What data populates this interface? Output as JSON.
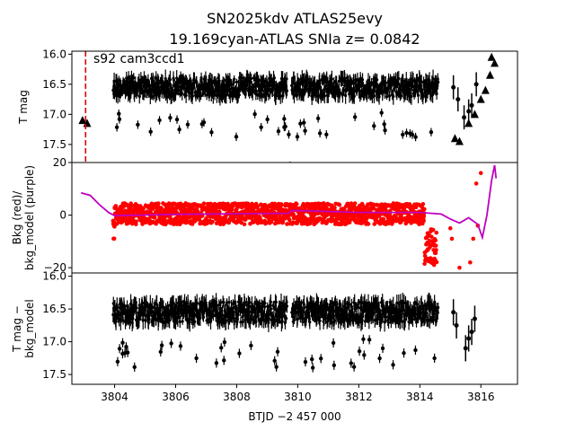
{
  "chart_data": {
    "type": "scatter",
    "title": "SN2025kdv  ATLAS25evy",
    "subtitle": "19.169cyan-ATLAS SNIa z= 0.0842",
    "xlabel": "BTJD −2 457 000",
    "x_ticks": [
      "3804",
      "3806",
      "3808",
      "3810",
      "3812",
      "3814",
      "3816"
    ],
    "xlim": [
      3802.6,
      3817.2
    ],
    "panels": [
      {
        "ylabel": "T mag",
        "ylim_inverted": [
          17.8,
          15.95
        ],
        "y_ticks": [
          "16.0",
          "16.5",
          "17.0",
          "17.5"
        ],
        "annotation": "s92 cam3ccd1",
        "marker_line_x": 3803.05,
        "series": [
          {
            "kind": "lightcurve",
            "x_start": 3803.95,
            "x_end": 3814.6,
            "gap": [
              3809.65,
              3809.8
            ],
            "center": 16.55,
            "spread": 0.32
          },
          {
            "kind": "triangles",
            "points": [
              [
                3802.95,
                17.1
              ],
              [
                3803.1,
                17.15
              ],
              [
                3809.75,
                17.85
              ],
              [
                3815.15,
                17.4
              ],
              [
                3815.3,
                17.45
              ],
              [
                3815.6,
                17.15
              ],
              [
                3815.8,
                17.0
              ],
              [
                3816.0,
                16.75
              ],
              [
                3816.15,
                16.6
              ],
              [
                3816.3,
                16.35
              ],
              [
                3816.35,
                16.05
              ],
              [
                3816.45,
                16.15
              ]
            ]
          },
          {
            "kind": "error_points",
            "points": [
              [
                3815.1,
                16.55
              ],
              [
                3815.25,
                16.75
              ],
              [
                3815.45,
                17.05
              ],
              [
                3815.6,
                16.95
              ],
              [
                3815.7,
                16.85
              ],
              [
                3815.85,
                16.5
              ]
            ]
          }
        ]
      },
      {
        "ylabel": "Bkg (red)/\nbkg_model (purple)",
        "ylim": [
          -22,
          20
        ],
        "y_ticks": [
          "20",
          "0",
          "−20"
        ],
        "series": [
          {
            "name": "Bkg",
            "color": "#ff0000",
            "kind": "band",
            "x_start": 3803.95,
            "x_end": 3814.55,
            "center": 0.5,
            "spread": 4
          },
          {
            "name": "bkg_model",
            "color": "#bf00bf",
            "kind": "line",
            "points": [
              [
                3802.9,
                8.5
              ],
              [
                3803.2,
                7.5
              ],
              [
                3803.5,
                4.0
              ],
              [
                3803.8,
                1.0
              ],
              [
                3804.0,
                -0.2
              ],
              [
                3806.0,
                0.3
              ],
              [
                3808.0,
                0.5
              ],
              [
                3809.7,
                0.7
              ],
              [
                3809.8,
                1.8
              ],
              [
                3812.0,
                1.0
              ],
              [
                3814.0,
                1.0
              ],
              [
                3814.7,
                0.4
              ],
              [
                3815.0,
                -1.5
              ],
              [
                3815.3,
                -3.0
              ],
              [
                3815.6,
                -1.0
              ],
              [
                3815.9,
                -3.5
              ],
              [
                3816.05,
                -8.5
              ],
              [
                3816.2,
                0.0
              ],
              [
                3816.35,
                13.0
              ],
              [
                3816.45,
                19.0
              ],
              [
                3816.5,
                14.0
              ]
            ]
          }
        ]
      },
      {
        "ylabel": "T mag −\nbkg_model",
        "ylim_inverted": [
          17.65,
          15.95
        ],
        "y_ticks": [
          "16.0",
          "16.5",
          "17.0",
          "17.5"
        ],
        "series": [
          {
            "kind": "lightcurve",
            "x_start": 3803.95,
            "x_end": 3814.6,
            "gap": [
              3809.65,
              3809.8
            ],
            "center": 16.55,
            "spread": 0.32
          },
          {
            "kind": "error_points",
            "points": [
              [
                3815.1,
                16.55
              ],
              [
                3815.2,
                16.75
              ],
              [
                3815.5,
                17.1
              ],
              [
                3815.6,
                16.95
              ],
              [
                3815.7,
                16.85
              ],
              [
                3815.8,
                16.65
              ]
            ]
          }
        ]
      }
    ]
  }
}
